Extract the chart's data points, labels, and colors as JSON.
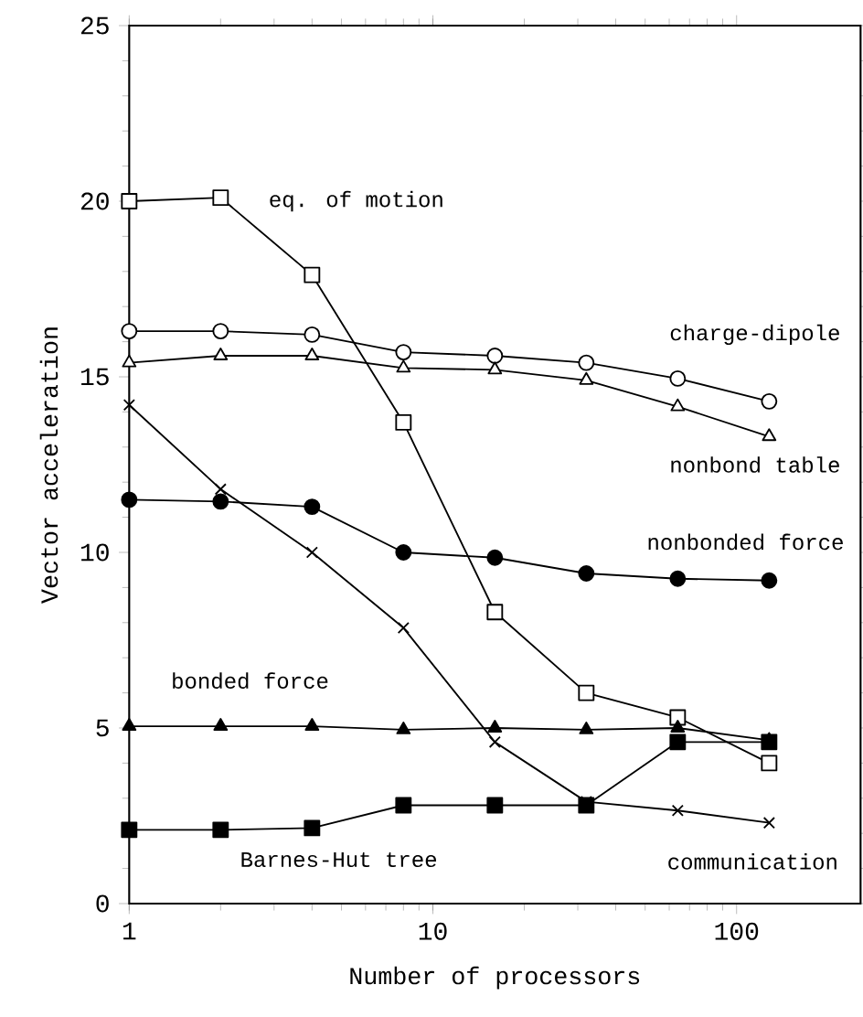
{
  "chart_data": {
    "type": "line",
    "xlabel": "Number of processors",
    "ylabel": "Vector acceleration",
    "log": "x",
    "xlim": [
      1,
      256
    ],
    "xticks": [
      1,
      10,
      100
    ],
    "ylim": [
      0,
      25
    ],
    "yticks": [
      0,
      5,
      10,
      15,
      20,
      25
    ],
    "line_style": "solid",
    "x": [
      1,
      2,
      4,
      8,
      16,
      32,
      64,
      128
    ],
    "series": [
      {
        "name": "eq. of motion",
        "color": "#000000",
        "marker": "square",
        "values": [
          20.0,
          20.1,
          17.9,
          13.7,
          8.3,
          6.0,
          5.3,
          4.0
        ]
      },
      {
        "name": "charge-dipole",
        "color": "#000000",
        "marker": "circle",
        "values": [
          16.3,
          16.3,
          16.2,
          15.7,
          15.6,
          15.4,
          14.95,
          14.3
        ]
      },
      {
        "name": "nonbond table",
        "color": "#000000",
        "marker": "triangle",
        "values": [
          15.4,
          15.6,
          15.6,
          15.25,
          15.2,
          14.9,
          14.15,
          13.3
        ]
      },
      {
        "name": "communication",
        "color": "#000000",
        "marker": "cross",
        "values": [
          14.2,
          11.8,
          10.0,
          7.85,
          4.6,
          2.9,
          2.65,
          2.3
        ]
      },
      {
        "name": "nonbonded force",
        "color": "#000000",
        "marker": "circle",
        "values": [
          11.5,
          11.45,
          11.3,
          10.0,
          9.85,
          9.4,
          9.25,
          9.2
        ]
      },
      {
        "name": "bonded force",
        "color": "#000000",
        "marker": "triangle",
        "values": [
          5.05,
          5.05,
          5.05,
          4.95,
          5.0,
          4.95,
          5.0,
          4.65
        ]
      },
      {
        "name": "Barnes-Hut tree",
        "color": "#000000",
        "marker": "square",
        "values": [
          2.1,
          2.1,
          2.15,
          2.8,
          2.8,
          2.8,
          4.6,
          4.6
        ]
      }
    ]
  }
}
